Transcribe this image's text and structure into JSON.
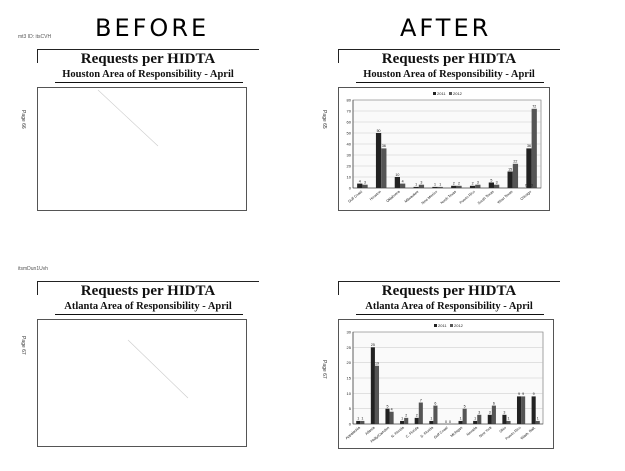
{
  "headings": {
    "before": "BEFORE",
    "after": "AFTER"
  },
  "stamps": {
    "top_left": "mt3 ID: itsCVH",
    "bottom_left": "itsmDun1Uvh"
  },
  "page_labels": {
    "p1": "Page 66",
    "p2": "Page 65",
    "p3": "Page 67",
    "p4": "Page 67"
  },
  "pages": [
    {
      "title": "Requests per HIDTA",
      "subtitle": "Houston Area of Responsibility - April"
    },
    {
      "title": "Requests per HIDTA",
      "subtitle": "Houston Area of Responsibility - April"
    },
    {
      "title": "Requests per HIDTA",
      "subtitle": "Atlanta Area of Responsibility - April"
    },
    {
      "title": "Requests per HIDTA",
      "subtitle": "Atlanta Area of Responsibility - April"
    }
  ],
  "chart_data": [
    {
      "type": "bar",
      "title": "",
      "xlabel": "",
      "ylabel": "",
      "ylim": [
        0,
        80
      ],
      "yticks": [
        0,
        10,
        20,
        30,
        40,
        50,
        60,
        70,
        80
      ],
      "legend_position": "top-center",
      "grid": true,
      "categories": [
        "Gulf Coast",
        "Houston",
        "Oklahoma",
        "Milwaukee",
        "New Mexico",
        "North Texas",
        "Puerto Rico",
        "South Texas",
        "West Texas",
        "Chicago"
      ],
      "series": [
        {
          "name": "2011",
          "color": "#222222",
          "values": [
            4,
            50,
            10,
            1,
            1,
            2,
            2,
            5,
            15,
            36
          ]
        },
        {
          "name": "2012",
          "color": "#555555",
          "values": [
            3,
            36,
            4,
            3,
            1,
            2,
            3,
            3,
            22,
            72
          ]
        }
      ],
      "data_labels": [
        [
          "4",
          "50",
          "10",
          "1",
          "1",
          "2",
          "2",
          "5",
          "15",
          "36"
        ],
        [
          "3",
          "36",
          "4",
          "3",
          "1",
          "2",
          "3",
          "3",
          "22",
          "72"
        ]
      ],
      "extra_labels": [
        "0",
        "0"
      ]
    },
    {
      "type": "bar",
      "title": "",
      "xlabel": "",
      "ylabel": "",
      "ylim": [
        0,
        30
      ],
      "yticks": [
        0,
        5,
        10,
        15,
        20,
        25,
        30
      ],
      "legend_position": "top-center",
      "grid": true,
      "categories": [
        "Appalachia",
        "Atlanta",
        "Philly/Camden",
        "N. Florida",
        "C. Florida",
        "S. Florida",
        "Gulf Coast",
        "Michigan",
        "Nevada",
        "New York",
        "Ohio",
        "Puerto Rico",
        "Wash. Balt."
      ],
      "series": [
        {
          "name": "2011",
          "color": "#222222",
          "values": [
            1,
            25,
            5,
            1,
            2,
            1,
            0,
            1,
            1,
            3,
            3,
            9,
            9
          ]
        },
        {
          "name": "2012",
          "color": "#555555",
          "values": [
            1,
            19,
            4,
            2,
            7,
            6,
            0,
            5,
            3,
            6,
            1,
            9,
            1
          ]
        }
      ],
      "data_labels": [
        [
          "1",
          "25",
          "5",
          "1",
          "2",
          "1",
          "0",
          "1",
          "1",
          "3",
          "3",
          "9",
          "9"
        ],
        [
          "1",
          "19",
          "4",
          "2",
          "7",
          "6",
          "0",
          "5",
          "3",
          "6",
          "1",
          "9",
          "1"
        ]
      ]
    }
  ]
}
